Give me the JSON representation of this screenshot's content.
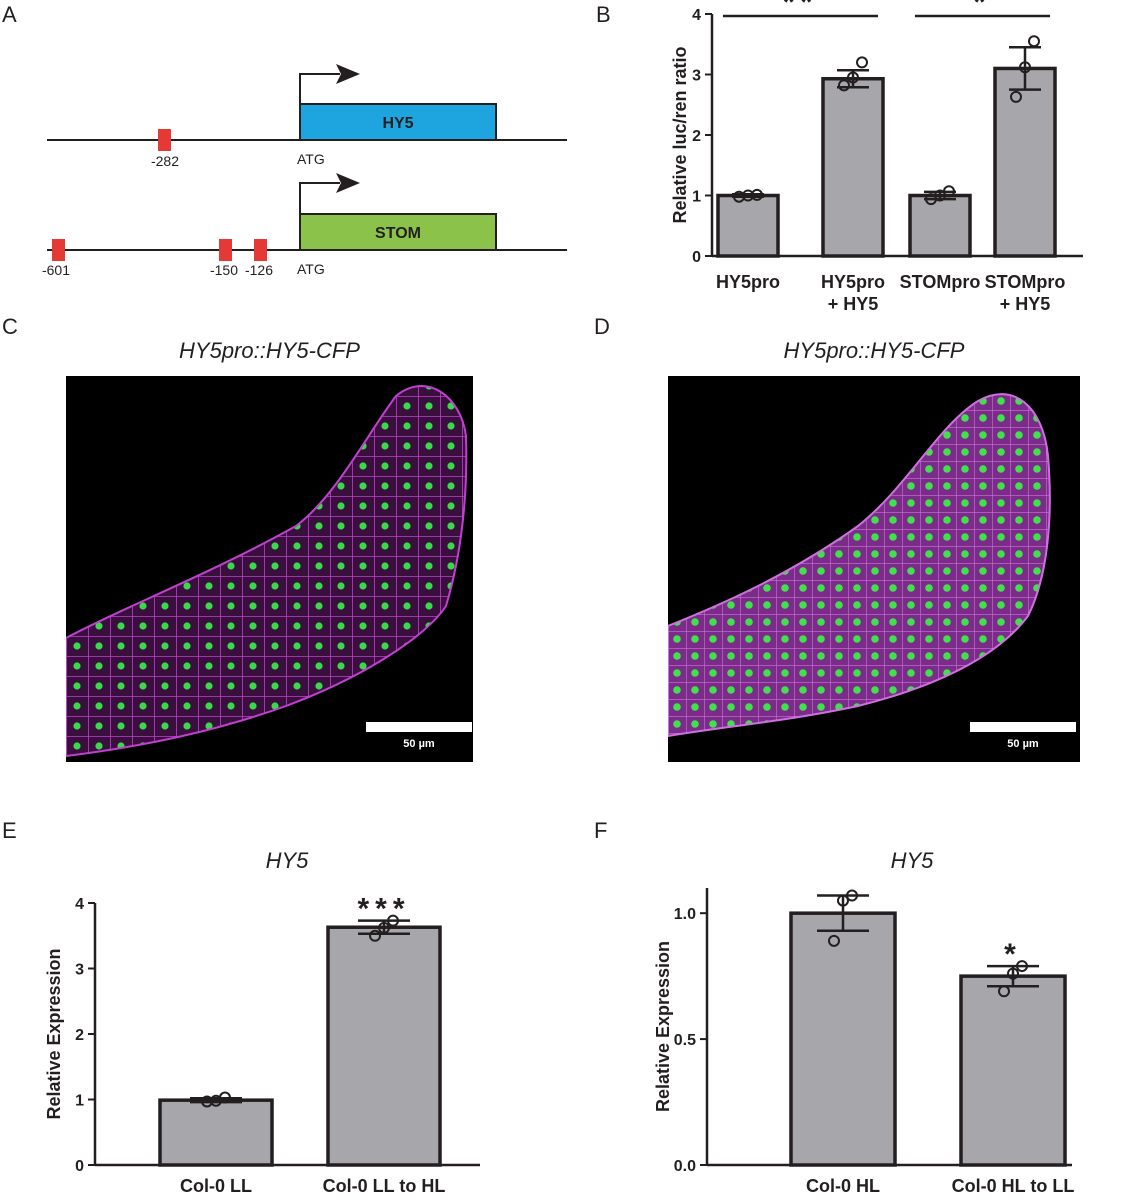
{
  "panel_letters": {
    "a": "A",
    "b": "B",
    "c": "C",
    "d": "D",
    "e": "E",
    "f": "F"
  },
  "panel_a": {
    "atg_label": "ATG",
    "genes": [
      {
        "name": "HY5",
        "color": "#1ea5e0",
        "sites": [
          "-282"
        ]
      },
      {
        "name": "STOM",
        "color": "#8bc34a",
        "sites": [
          "-601",
          "-150",
          "-126"
        ]
      }
    ],
    "site_color": "#e53935"
  },
  "panel_c": {
    "title": "HY5pro::HY5-CFP",
    "scale_label": "50 µm"
  },
  "panel_d": {
    "title": "HY5pro::HY5-CFP",
    "scale_label": "50 µm"
  },
  "bar_color": "#a7a6ab",
  "chart_data": [
    {
      "id": "B",
      "type": "bar",
      "title": "",
      "ylabel": "Relative luc/ren ratio",
      "xlabel": "",
      "ylim": [
        0,
        4
      ],
      "yticks": [
        "0",
        "1",
        "2",
        "3",
        "4"
      ],
      "categories": [
        [
          "HY5pro"
        ],
        [
          "HY5pro",
          "+ HY5"
        ],
        [
          "STOMpro"
        ],
        [
          "STOMpro",
          "+ HY5"
        ]
      ],
      "values": [
        1.0,
        2.93,
        1.0,
        3.1
      ],
      "errors": [
        0.02,
        0.14,
        0.06,
        0.35
      ],
      "points": [
        [
          0.98,
          1.0,
          1.01
        ],
        [
          2.82,
          2.95,
          3.2
        ],
        [
          0.94,
          1.0,
          1.07
        ],
        [
          2.63,
          3.12,
          3.55
        ]
      ],
      "significance": [
        {
          "from": 0,
          "to": 1,
          "label": "**"
        },
        {
          "from": 2,
          "to": 3,
          "label": "*"
        }
      ]
    },
    {
      "id": "E",
      "type": "bar",
      "title": "HY5",
      "ylabel": "Relative Expression",
      "xlabel": "",
      "ylim": [
        0,
        4
      ],
      "yticks": [
        "0",
        "1",
        "2",
        "3",
        "4"
      ],
      "categories": [
        [
          "Col-0 LL"
        ],
        [
          "Col-0 LL to HL"
        ]
      ],
      "values": [
        0.99,
        3.63
      ],
      "errors": [
        0.03,
        0.1
      ],
      "points": [
        [
          0.97,
          0.98,
          1.03
        ],
        [
          3.5,
          3.62,
          3.73
        ]
      ],
      "stars": [
        {
          "index": 1,
          "label": "***"
        }
      ]
    },
    {
      "id": "F",
      "type": "bar",
      "title": "HY5",
      "ylabel": "Relative Expression",
      "xlabel": "",
      "ylim": [
        0,
        1.1
      ],
      "yticks": [
        "0.0",
        "0.5",
        "1.0"
      ],
      "categories": [
        [
          "Col-0 HL"
        ],
        [
          "Col-0 HL to LL"
        ]
      ],
      "values": [
        1.0,
        0.75
      ],
      "errors": [
        0.07,
        0.04
      ],
      "points": [
        [
          0.89,
          1.05,
          1.07
        ],
        [
          0.69,
          0.76,
          0.79
        ]
      ],
      "stars": [
        {
          "index": 1,
          "label": "*"
        }
      ]
    }
  ]
}
